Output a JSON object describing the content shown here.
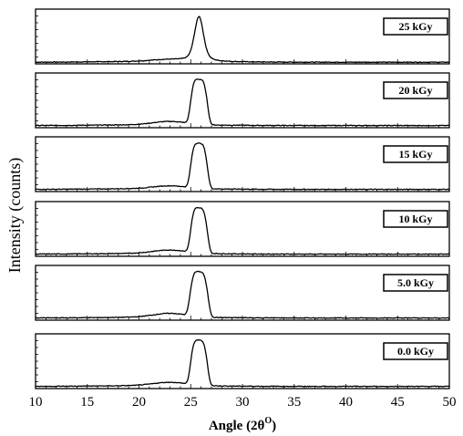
{
  "chart_data": {
    "type": "line",
    "title": "",
    "xlabel": "Angle (2θ",
    "xlabel_sup": "O",
    "xlabel_close": ")",
    "ylabel": "Intensity (counts)",
    "xlim": [
      10,
      50
    ],
    "xticks": [
      10,
      15,
      20,
      25,
      30,
      35,
      40,
      45,
      50
    ],
    "ylim": [
      0,
      1
    ],
    "y_tick_labels_shown": false,
    "grid": false,
    "legend_placement": "top-right",
    "panels": [
      {
        "label": "25 kGy",
        "peak": {
          "center": 25.8,
          "fwhm": 1.0,
          "amplitude": 0.82,
          "shape": "sharp"
        },
        "baseline": 0.03,
        "shoulder": {
          "center": 22.8,
          "amplitude": 0.03
        }
      },
      {
        "label": "20 kGy",
        "peak": {
          "center": 25.8,
          "fwhm": 1.6,
          "amplitude": 0.82,
          "shape": "flat-top"
        },
        "baseline": 0.04,
        "shoulder": {
          "center": 23.0,
          "amplitude": 0.06
        }
      },
      {
        "label": "15 kGy",
        "peak": {
          "center": 25.8,
          "fwhm": 1.6,
          "amplitude": 0.82,
          "shape": "flat-top"
        },
        "baseline": 0.04,
        "shoulder": {
          "center": 23.0,
          "amplitude": 0.05
        }
      },
      {
        "label": "10 kGy",
        "peak": {
          "center": 25.8,
          "fwhm": 1.6,
          "amplitude": 0.82,
          "shape": "flat-top"
        },
        "baseline": 0.04,
        "shoulder": {
          "center": 23.0,
          "amplitude": 0.06
        }
      },
      {
        "label": "5.0 kGy",
        "peak": {
          "center": 25.8,
          "fwhm": 1.7,
          "amplitude": 0.82,
          "shape": "flat-top"
        },
        "baseline": 0.04,
        "shoulder": {
          "center": 23.0,
          "amplitude": 0.07
        }
      },
      {
        "label": "0.0 kGy",
        "peak": {
          "center": 25.8,
          "fwhm": 1.6,
          "amplitude": 0.82,
          "shape": "flat-top"
        },
        "baseline": 0.04,
        "shoulder": {
          "center": 23.0,
          "amplitude": 0.06
        }
      }
    ]
  }
}
